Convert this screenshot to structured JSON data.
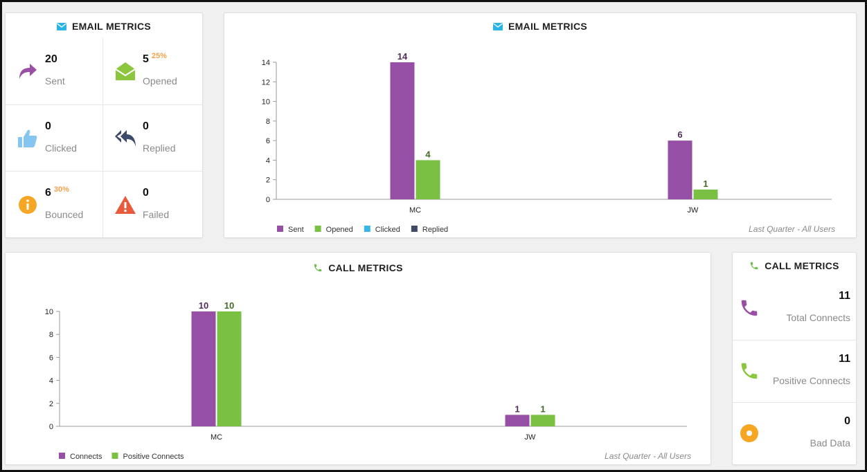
{
  "email_tiles": {
    "title": "EMAIL METRICS",
    "items": [
      {
        "value": "20",
        "pct": "",
        "label": "Sent",
        "icon": "share-arrow-icon",
        "color": "#9b4ea6"
      },
      {
        "value": "5",
        "pct": "25%",
        "label": "Opened",
        "icon": "open-envelope-icon",
        "color": "#8cc63f"
      },
      {
        "value": "0",
        "pct": "",
        "label": "Clicked",
        "icon": "thumbs-up-icon",
        "color": "#86c5f0"
      },
      {
        "value": "0",
        "pct": "",
        "label": "Replied",
        "icon": "reply-all-icon",
        "color": "#3a4a6b"
      },
      {
        "value": "6",
        "pct": "30%",
        "label": "Bounced",
        "icon": "info-circle-icon",
        "color": "#f5a623"
      },
      {
        "value": "0",
        "pct": "",
        "label": "Failed",
        "icon": "warning-triangle-icon",
        "color": "#e85a3c"
      }
    ]
  },
  "email_chart_panel": {
    "title": "EMAIL METRICS",
    "footnote": "Last Quarter - All Users"
  },
  "call_chart_panel": {
    "title": "CALL METRICS",
    "footnote": "Last Quarter - All Users"
  },
  "call_tiles": {
    "title": "CALL METRICS",
    "items": [
      {
        "value": "11",
        "label": "Total Connects",
        "icon": "phone-icon",
        "color": "#9b4ea6"
      },
      {
        "value": "11",
        "label": "Positive Connects",
        "icon": "phone-icon",
        "color": "#8cc63f"
      },
      {
        "value": "0",
        "label": "Bad Data",
        "icon": "dot-circle-icon",
        "color": "#f5a623"
      }
    ]
  },
  "colors": {
    "email_icon": "#2bb3e8",
    "call_icon": "#6cc04a"
  },
  "chart_data": [
    {
      "type": "bar",
      "categories": [
        "MC",
        "JW"
      ],
      "series": [
        {
          "name": "Sent",
          "values": [
            14,
            6
          ],
          "color": "#9550a5"
        },
        {
          "name": "Opened",
          "values": [
            4,
            1
          ],
          "color": "#7ac143"
        },
        {
          "name": "Clicked",
          "values": [
            0,
            0
          ],
          "color": "#39b6e7"
        },
        {
          "name": "Replied",
          "values": [
            0,
            0
          ],
          "color": "#3f4a66"
        }
      ],
      "ylim": [
        0,
        14
      ],
      "yticks": [
        0,
        2,
        4,
        6,
        8,
        10,
        12,
        14
      ],
      "legend": "bottom-left"
    },
    {
      "type": "bar",
      "categories": [
        "MC",
        "JW"
      ],
      "series": [
        {
          "name": "Connects",
          "values": [
            10,
            1
          ],
          "color": "#9550a5"
        },
        {
          "name": "Positive Connects",
          "values": [
            10,
            1
          ],
          "color": "#7ac143"
        }
      ],
      "ylim": [
        0,
        10
      ],
      "yticks": [
        0,
        2,
        4,
        6,
        8,
        10
      ],
      "legend": "bottom-left"
    }
  ]
}
